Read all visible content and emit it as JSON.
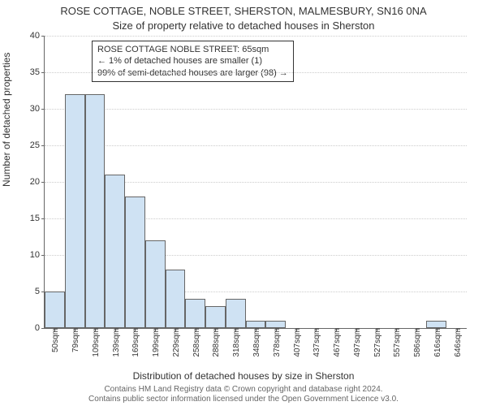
{
  "titles": {
    "line1": "ROSE COTTAGE, NOBLE STREET, SHERSTON, MALMESBURY, SN16 0NA",
    "line2": "Size of property relative to detached houses in Sherston"
  },
  "ylabel": "Number of detached properties",
  "xlabel": "Distribution of detached houses by size in Sherston",
  "attribution": {
    "l1": "Contains HM Land Registry data © Crown copyright and database right 2024.",
    "l2": "Contains public sector information licensed under the Open Government Licence v3.0."
  },
  "chart": {
    "type": "bar",
    "ylim": [
      0,
      40
    ],
    "ytick_step": 5,
    "yticks": [
      0,
      5,
      10,
      15,
      20,
      25,
      30,
      35,
      40
    ],
    "bar_fill": "#cfe2f3",
    "bar_border": "#666666",
    "background_color": "#ffffff",
    "grid_color": "#cccccc",
    "categories": [
      "50sqm",
      "79sqm",
      "109sqm",
      "139sqm",
      "169sqm",
      "199sqm",
      "229sqm",
      "258sqm",
      "288sqm",
      "318sqm",
      "348sqm",
      "378sqm",
      "407sqm",
      "437sqm",
      "467sqm",
      "497sqm",
      "527sqm",
      "557sqm",
      "586sqm",
      "616sqm",
      "646sqm"
    ],
    "values": [
      5,
      32,
      32,
      21,
      18,
      12,
      8,
      4,
      3,
      4,
      1,
      1,
      0,
      0,
      0,
      0,
      0,
      0,
      0,
      1,
      0
    ],
    "bar_width_ratio": 1.0
  },
  "annotation": {
    "l1": "ROSE COTTAGE NOBLE STREET: 65sqm",
    "l2": "← 1% of detached houses are smaller (1)",
    "l3": "99% of semi-detached houses are larger (98) →"
  }
}
